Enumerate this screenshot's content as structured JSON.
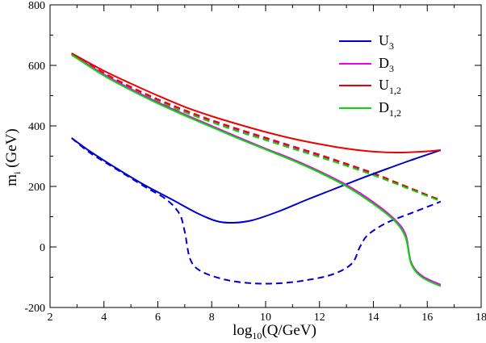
{
  "chart_data": {
    "type": "line",
    "title": "",
    "xlabel": {
      "base": "log",
      "sub": "10",
      "rest": "(Q/GeV)"
    },
    "ylabel": {
      "base": "m",
      "sub": "i",
      "rest": " (GeV)"
    },
    "xlim": [
      2,
      18
    ],
    "ylim": [
      -200,
      800
    ],
    "xticks": [
      2,
      4,
      6,
      8,
      10,
      12,
      14,
      16,
      18
    ],
    "yticks": [
      -200,
      0,
      200,
      400,
      600,
      800
    ],
    "legend_position": "top-right",
    "series": [
      {
        "name": "U3",
        "label_base": "U",
        "label_sub": "3",
        "color": "#0000cc",
        "style": "solid",
        "points": [
          [
            2.8,
            360
          ],
          [
            3.5,
            315
          ],
          [
            4.5,
            258
          ],
          [
            5.5,
            205
          ],
          [
            6.5,
            158
          ],
          [
            7.5,
            110
          ],
          [
            8.2,
            85
          ],
          [
            8.8,
            80
          ],
          [
            9.5,
            88
          ],
          [
            10.5,
            118
          ],
          [
            11.5,
            155
          ],
          [
            12.5,
            190
          ],
          [
            13.5,
            225
          ],
          [
            14.5,
            258
          ],
          [
            15.5,
            290
          ],
          [
            16.5,
            320
          ]
        ]
      },
      {
        "name": "D3",
        "label_base": "D",
        "label_sub": "3",
        "color": "#ee00ee",
        "style": "solid",
        "points": [
          [
            2.8,
            638
          ],
          [
            4,
            570
          ],
          [
            5,
            522
          ],
          [
            6,
            478
          ],
          [
            7,
            438
          ],
          [
            8,
            400
          ],
          [
            9,
            362
          ],
          [
            10,
            325
          ],
          [
            11,
            290
          ],
          [
            12,
            250
          ],
          [
            13,
            205
          ],
          [
            14,
            148
          ],
          [
            14.8,
            90
          ],
          [
            15.2,
            40
          ],
          [
            15.4,
            -50
          ],
          [
            15.8,
            -95
          ],
          [
            16.5,
            -125
          ]
        ]
      },
      {
        "name": "U1,2",
        "label_base": "U",
        "label_sub": "1,2",
        "color": "#ee0000",
        "style": "solid",
        "points": [
          [
            2.8,
            640
          ],
          [
            4,
            582
          ],
          [
            5,
            540
          ],
          [
            6,
            500
          ],
          [
            7,
            463
          ],
          [
            8,
            432
          ],
          [
            9,
            405
          ],
          [
            10,
            380
          ],
          [
            11,
            358
          ],
          [
            12,
            340
          ],
          [
            13,
            325
          ],
          [
            14,
            315
          ],
          [
            15,
            312
          ],
          [
            16,
            316
          ],
          [
            16.5,
            320
          ]
        ]
      },
      {
        "name": "D1,2",
        "label_base": "D",
        "label_sub": "1,2",
        "color": "#00dd00",
        "style": "solid",
        "points": [
          [
            2.8,
            635
          ],
          [
            4,
            566
          ],
          [
            5,
            518
          ],
          [
            6,
            474
          ],
          [
            7,
            434
          ],
          [
            8,
            396
          ],
          [
            9,
            358
          ],
          [
            10,
            322
          ],
          [
            11,
            286
          ],
          [
            12,
            246
          ],
          [
            13,
            200
          ],
          [
            14,
            142
          ],
          [
            14.8,
            85
          ],
          [
            15.2,
            30
          ],
          [
            15.4,
            -55
          ],
          [
            15.8,
            -100
          ],
          [
            16.5,
            -130
          ]
        ]
      },
      {
        "name": "D3 dashed",
        "color": "#ee00ee",
        "style": "dashed",
        "points": [
          [
            2.8,
            638
          ],
          [
            4,
            572
          ],
          [
            5,
            525
          ],
          [
            6,
            484
          ],
          [
            7,
            448
          ],
          [
            8,
            415
          ],
          [
            9,
            384
          ],
          [
            10,
            356
          ],
          [
            11,
            328
          ],
          [
            12,
            300
          ],
          [
            13,
            271
          ],
          [
            14,
            240
          ],
          [
            15,
            205
          ],
          [
            16,
            170
          ],
          [
            16.5,
            155
          ]
        ]
      },
      {
        "name": "U1,2 dashed",
        "color": "#ee0000",
        "style": "dashed",
        "points": [
          [
            2.8,
            640
          ],
          [
            4,
            575
          ],
          [
            5,
            529
          ],
          [
            6,
            488
          ],
          [
            7,
            452
          ],
          [
            8,
            419
          ],
          [
            9,
            389
          ],
          [
            10,
            361
          ],
          [
            11,
            333
          ],
          [
            12,
            305
          ],
          [
            13,
            275
          ],
          [
            14,
            244
          ],
          [
            15,
            208
          ],
          [
            16,
            172
          ],
          [
            16.5,
            155
          ]
        ]
      },
      {
        "name": "D1,2 dashed",
        "color": "#00dd00",
        "style": "dashed",
        "points": [
          [
            2.8,
            635
          ],
          [
            4,
            568
          ],
          [
            5,
            522
          ],
          [
            6,
            481
          ],
          [
            7,
            445
          ],
          [
            8,
            412
          ],
          [
            9,
            381
          ],
          [
            10,
            353
          ],
          [
            11,
            325
          ],
          [
            12,
            297
          ],
          [
            13,
            268
          ],
          [
            14,
            237
          ],
          [
            15,
            203
          ],
          [
            16,
            168
          ],
          [
            16.5,
            152
          ]
        ]
      },
      {
        "name": "U3 dashed",
        "color": "#0000cc",
        "style": "dashed",
        "points": [
          [
            2.8,
            360
          ],
          [
            3.5,
            310
          ],
          [
            4.5,
            255
          ],
          [
            5.5,
            200
          ],
          [
            6.3,
            158
          ],
          [
            6.8,
            110
          ],
          [
            7.0,
            50
          ],
          [
            7.2,
            -40
          ],
          [
            7.6,
            -80
          ],
          [
            8.5,
            -108
          ],
          [
            9.5,
            -120
          ],
          [
            10.5,
            -120
          ],
          [
            11.5,
            -110
          ],
          [
            12.5,
            -90
          ],
          [
            13.2,
            -55
          ],
          [
            13.5,
            0
          ],
          [
            13.8,
            40
          ],
          [
            14.5,
            80
          ],
          [
            15.5,
            115
          ],
          [
            16.5,
            150
          ]
        ]
      }
    ]
  }
}
